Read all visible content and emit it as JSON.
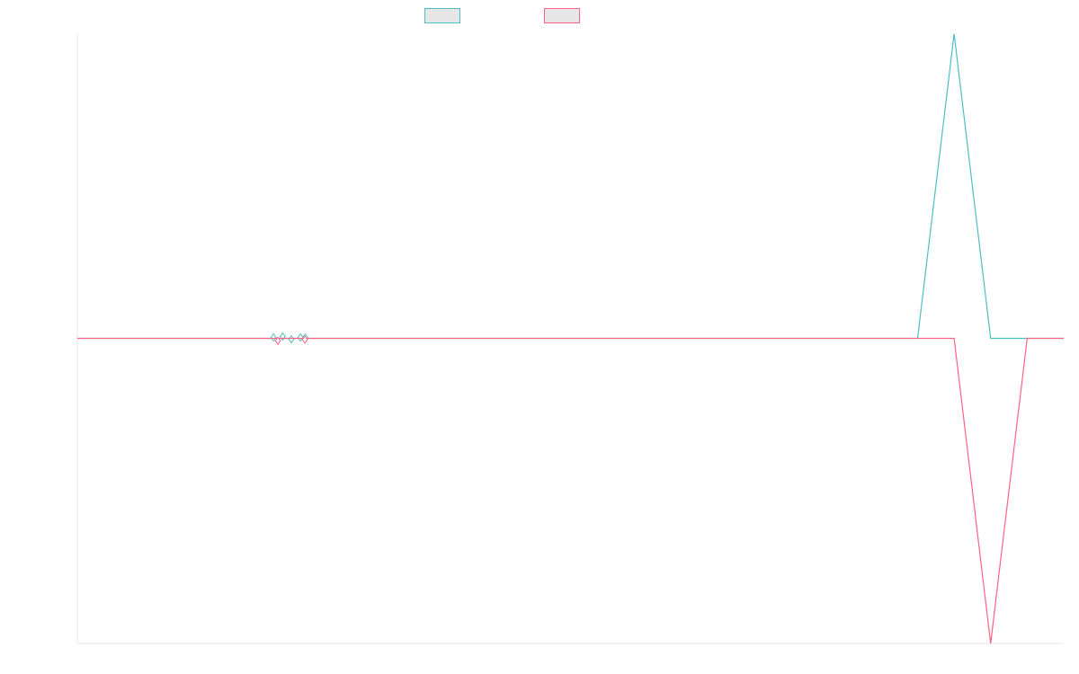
{
  "chart_data": {
    "type": "line",
    "x_axis": {
      "tick_labels": []
    },
    "y_axis": {
      "tick_labels": []
    },
    "x": [
      0,
      1,
      2,
      3,
      4,
      5,
      6,
      7,
      8,
      9,
      10,
      11,
      12,
      13,
      14,
      15,
      16,
      17,
      18,
      19,
      20,
      21,
      22,
      23,
      24,
      25,
      26,
      27
    ],
    "series": [
      {
        "color": "#4bc0c0",
        "values": [
          0,
          0,
          0,
          0,
          0,
          0,
          0,
          0,
          0,
          0,
          0,
          0,
          0,
          0,
          0,
          0,
          0,
          0,
          0,
          0,
          0,
          0,
          0,
          0,
          0.998,
          0,
          0,
          0
        ],
        "markers": [
          {
            "x": 5.37,
            "y": 0.003
          },
          {
            "x": 5.62,
            "y": 0.006
          },
          {
            "x": 5.86,
            "y": -0.003
          },
          {
            "x": 6.11,
            "y": 0.003
          },
          {
            "x": 6.24,
            "y": 0.003
          }
        ]
      },
      {
        "color": "#ff6384",
        "values": [
          0,
          0,
          0,
          0,
          0,
          0,
          0,
          0,
          0,
          0,
          0,
          0,
          0,
          0,
          0,
          0,
          0,
          0,
          0,
          0,
          0,
          0,
          0,
          0,
          0,
          -1,
          0,
          0
        ],
        "markers": [
          {
            "x": 5.49,
            "y": -0.008
          },
          {
            "x": 6.23,
            "y": -0.004
          }
        ]
      }
    ],
    "ylim": [
      -1,
      1
    ],
    "legend": {
      "position": "top"
    },
    "grid": false
  }
}
